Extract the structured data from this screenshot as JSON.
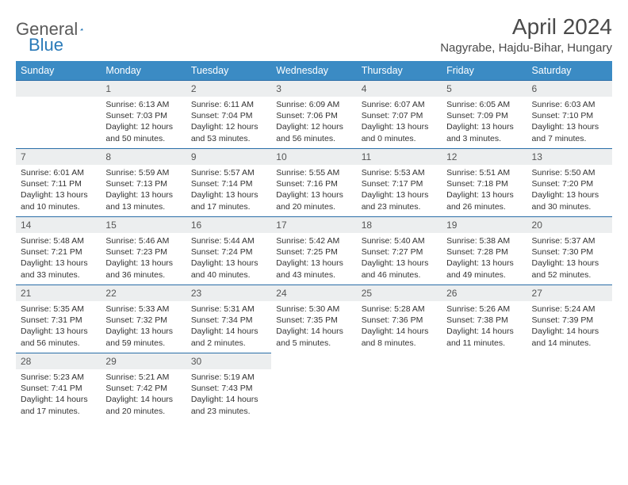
{
  "logo": {
    "text1": "General",
    "text2": "Blue"
  },
  "title": "April 2024",
  "location": "Nagyrabe, Hajdu-Bihar, Hungary",
  "colors": {
    "header_bg": "#3b8bc4",
    "header_text": "#ffffff",
    "daynum_bg": "#eceeef",
    "row_border": "#2a6ea8",
    "logo_gray": "#5a5a5a",
    "logo_blue": "#2a7ab8"
  },
  "weekdays": [
    "Sunday",
    "Monday",
    "Tuesday",
    "Wednesday",
    "Thursday",
    "Friday",
    "Saturday"
  ],
  "weeks": [
    [
      {
        "num": "",
        "sunrise": "",
        "sunset": "",
        "day_h": "",
        "day_m": ""
      },
      {
        "num": "1",
        "sunrise": "6:13 AM",
        "sunset": "7:03 PM",
        "day_h": "12",
        "day_m": "50"
      },
      {
        "num": "2",
        "sunrise": "6:11 AM",
        "sunset": "7:04 PM",
        "day_h": "12",
        "day_m": "53"
      },
      {
        "num": "3",
        "sunrise": "6:09 AM",
        "sunset": "7:06 PM",
        "day_h": "12",
        "day_m": "56"
      },
      {
        "num": "4",
        "sunrise": "6:07 AM",
        "sunset": "7:07 PM",
        "day_h": "13",
        "day_m": "0"
      },
      {
        "num": "5",
        "sunrise": "6:05 AM",
        "sunset": "7:09 PM",
        "day_h": "13",
        "day_m": "3"
      },
      {
        "num": "6",
        "sunrise": "6:03 AM",
        "sunset": "7:10 PM",
        "day_h": "13",
        "day_m": "7"
      }
    ],
    [
      {
        "num": "7",
        "sunrise": "6:01 AM",
        "sunset": "7:11 PM",
        "day_h": "13",
        "day_m": "10"
      },
      {
        "num": "8",
        "sunrise": "5:59 AM",
        "sunset": "7:13 PM",
        "day_h": "13",
        "day_m": "13"
      },
      {
        "num": "9",
        "sunrise": "5:57 AM",
        "sunset": "7:14 PM",
        "day_h": "13",
        "day_m": "17"
      },
      {
        "num": "10",
        "sunrise": "5:55 AM",
        "sunset": "7:16 PM",
        "day_h": "13",
        "day_m": "20"
      },
      {
        "num": "11",
        "sunrise": "5:53 AM",
        "sunset": "7:17 PM",
        "day_h": "13",
        "day_m": "23"
      },
      {
        "num": "12",
        "sunrise": "5:51 AM",
        "sunset": "7:18 PM",
        "day_h": "13",
        "day_m": "26"
      },
      {
        "num": "13",
        "sunrise": "5:50 AM",
        "sunset": "7:20 PM",
        "day_h": "13",
        "day_m": "30"
      }
    ],
    [
      {
        "num": "14",
        "sunrise": "5:48 AM",
        "sunset": "7:21 PM",
        "day_h": "13",
        "day_m": "33"
      },
      {
        "num": "15",
        "sunrise": "5:46 AM",
        "sunset": "7:23 PM",
        "day_h": "13",
        "day_m": "36"
      },
      {
        "num": "16",
        "sunrise": "5:44 AM",
        "sunset": "7:24 PM",
        "day_h": "13",
        "day_m": "40"
      },
      {
        "num": "17",
        "sunrise": "5:42 AM",
        "sunset": "7:25 PM",
        "day_h": "13",
        "day_m": "43"
      },
      {
        "num": "18",
        "sunrise": "5:40 AM",
        "sunset": "7:27 PM",
        "day_h": "13",
        "day_m": "46"
      },
      {
        "num": "19",
        "sunrise": "5:38 AM",
        "sunset": "7:28 PM",
        "day_h": "13",
        "day_m": "49"
      },
      {
        "num": "20",
        "sunrise": "5:37 AM",
        "sunset": "7:30 PM",
        "day_h": "13",
        "day_m": "52"
      }
    ],
    [
      {
        "num": "21",
        "sunrise": "5:35 AM",
        "sunset": "7:31 PM",
        "day_h": "13",
        "day_m": "56"
      },
      {
        "num": "22",
        "sunrise": "5:33 AM",
        "sunset": "7:32 PM",
        "day_h": "13",
        "day_m": "59"
      },
      {
        "num": "23",
        "sunrise": "5:31 AM",
        "sunset": "7:34 PM",
        "day_h": "14",
        "day_m": "2"
      },
      {
        "num": "24",
        "sunrise": "5:30 AM",
        "sunset": "7:35 PM",
        "day_h": "14",
        "day_m": "5"
      },
      {
        "num": "25",
        "sunrise": "5:28 AM",
        "sunset": "7:36 PM",
        "day_h": "14",
        "day_m": "8"
      },
      {
        "num": "26",
        "sunrise": "5:26 AM",
        "sunset": "7:38 PM",
        "day_h": "14",
        "day_m": "11"
      },
      {
        "num": "27",
        "sunrise": "5:24 AM",
        "sunset": "7:39 PM",
        "day_h": "14",
        "day_m": "14"
      }
    ],
    [
      {
        "num": "28",
        "sunrise": "5:23 AM",
        "sunset": "7:41 PM",
        "day_h": "14",
        "day_m": "17"
      },
      {
        "num": "29",
        "sunrise": "5:21 AM",
        "sunset": "7:42 PM",
        "day_h": "14",
        "day_m": "20"
      },
      {
        "num": "30",
        "sunrise": "5:19 AM",
        "sunset": "7:43 PM",
        "day_h": "14",
        "day_m": "23"
      },
      {
        "num": "",
        "sunrise": "",
        "sunset": "",
        "day_h": "",
        "day_m": ""
      },
      {
        "num": "",
        "sunrise": "",
        "sunset": "",
        "day_h": "",
        "day_m": ""
      },
      {
        "num": "",
        "sunrise": "",
        "sunset": "",
        "day_h": "",
        "day_m": ""
      },
      {
        "num": "",
        "sunrise": "",
        "sunset": "",
        "day_h": "",
        "day_m": ""
      }
    ]
  ],
  "labels": {
    "sunrise": "Sunrise:",
    "sunset": "Sunset:",
    "daylight": "Daylight:",
    "hours": "hours",
    "and": "and",
    "minutes": "minutes."
  }
}
